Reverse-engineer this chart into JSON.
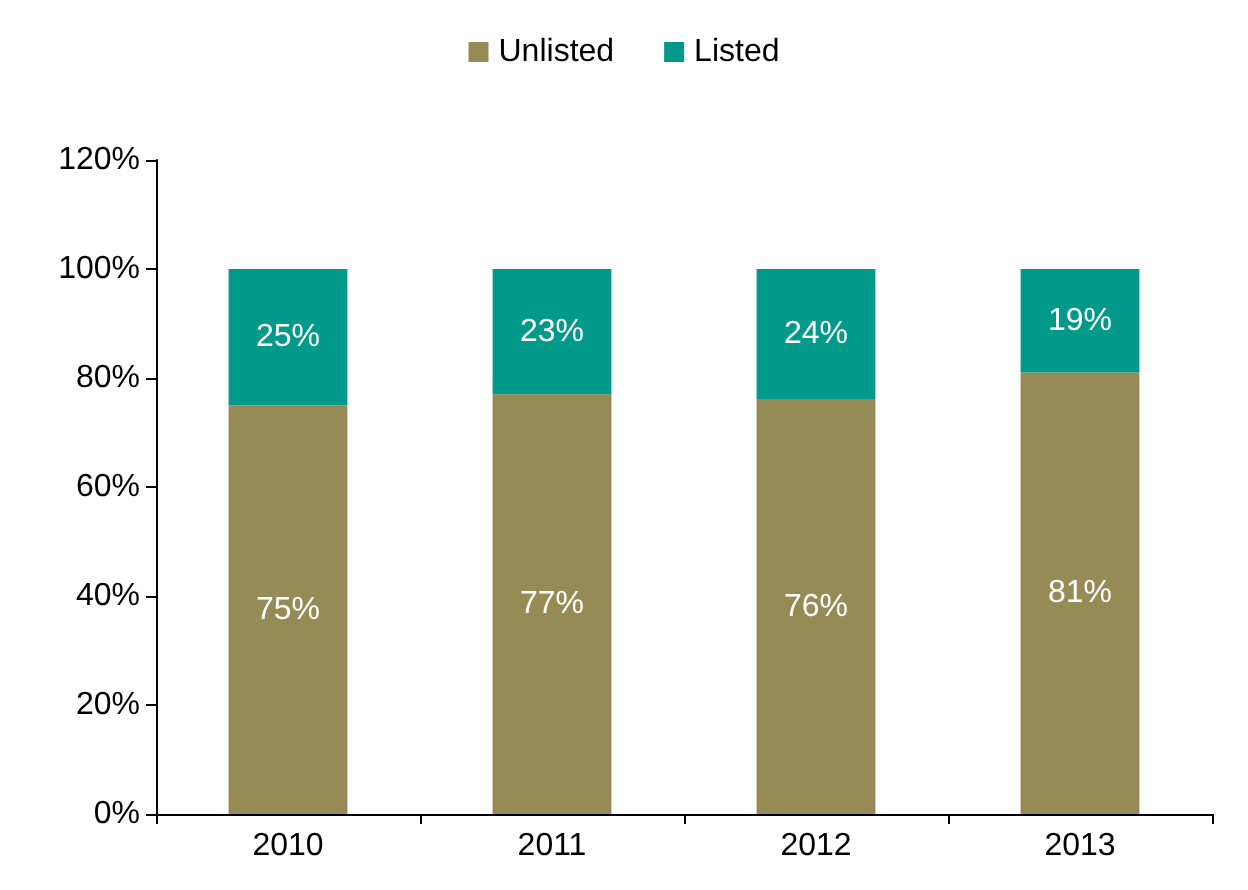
{
  "chart_data": {
    "type": "bar",
    "stacked": true,
    "categories": [
      "2010",
      "2011",
      "2012",
      "2013"
    ],
    "series": [
      {
        "name": "Unlisted",
        "color": "#968b55",
        "values": [
          75,
          77,
          76,
          81
        ],
        "value_labels": [
          "75%",
          "77%",
          "76%",
          "81%"
        ]
      },
      {
        "name": "Listed",
        "color": "#00998a",
        "values": [
          25,
          23,
          24,
          19
        ],
        "value_labels": [
          "25%",
          "23%",
          "24%",
          "19%"
        ]
      }
    ],
    "ylim": [
      0,
      120
    ],
    "yticks": [
      {
        "value": 0,
        "label": "0%"
      },
      {
        "value": 20,
        "label": "20%"
      },
      {
        "value": 40,
        "label": "40%"
      },
      {
        "value": 60,
        "label": "60%"
      },
      {
        "value": 80,
        "label": "80%"
      },
      {
        "value": 100,
        "label": "100%"
      },
      {
        "value": 120,
        "label": "120%"
      }
    ],
    "grid": false,
    "legend": "top"
  }
}
